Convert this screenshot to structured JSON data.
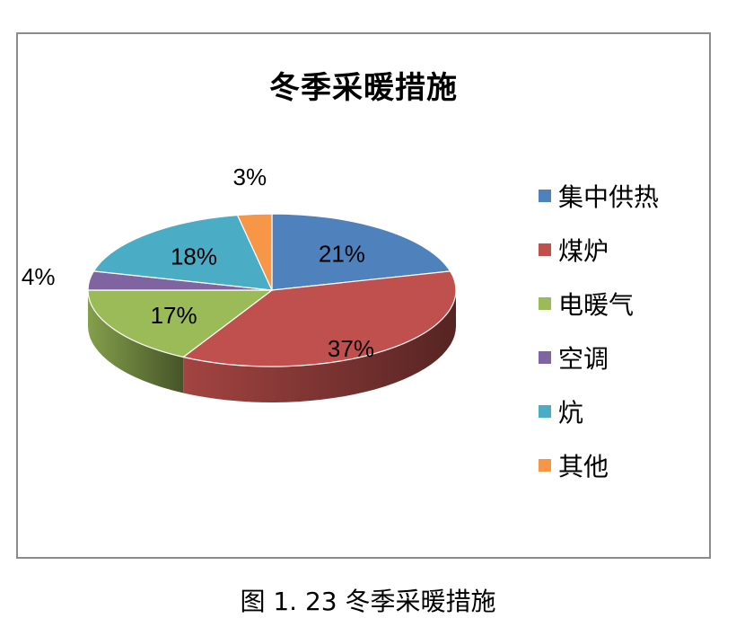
{
  "chart_data": {
    "type": "pie",
    "title": "冬季采暖措施",
    "categories": [
      "集中供热",
      "煤炉",
      "电暖气",
      "空调",
      "炕",
      "其他"
    ],
    "values": [
      21,
      37,
      17,
      4,
      18,
      3
    ],
    "value_labels": [
      "21%",
      "37%",
      "17%",
      "4%",
      "18%",
      "3%"
    ],
    "colors": [
      "#4f81bd",
      "#c0504d",
      "#9bbb59",
      "#8064a2",
      "#4bacc6",
      "#f79646"
    ],
    "style": "3d-pie",
    "legend_position": "right"
  },
  "caption": "图 1. 23 冬季采暖措施"
}
